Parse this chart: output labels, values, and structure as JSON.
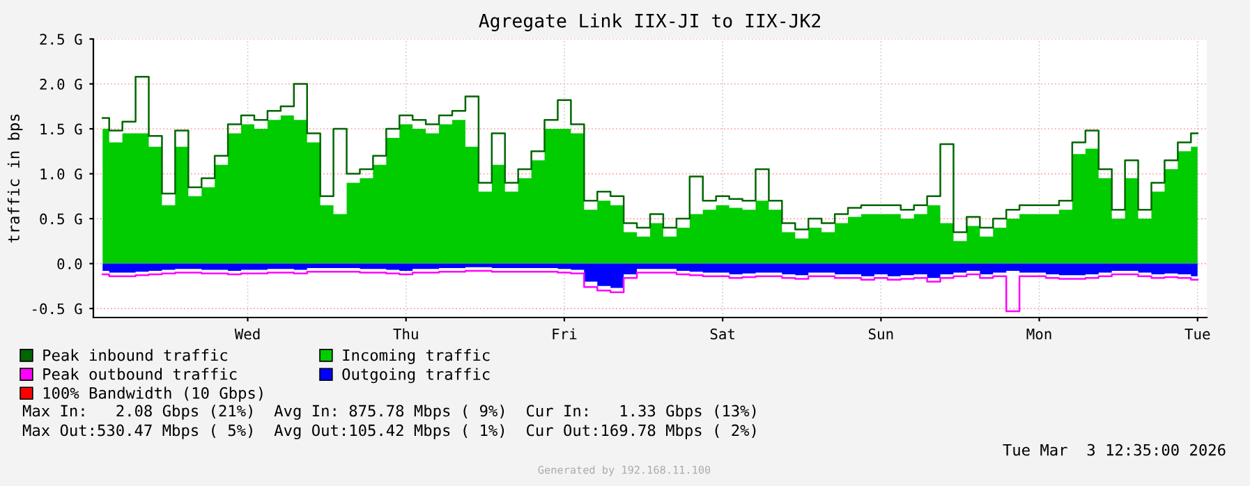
{
  "chart_data": {
    "type": "area",
    "title": "Agregate Link IIX-JI to IIX-JK2",
    "ylabel": "traffic in bps",
    "categories": [
      null,
      null,
      null,
      null,
      null,
      null,
      null,
      null,
      null,
      null,
      null,
      "Wed",
      null,
      null,
      null,
      null,
      null,
      null,
      null,
      null,
      null,
      null,
      null,
      "Thu",
      null,
      null,
      null,
      null,
      null,
      null,
      null,
      null,
      null,
      null,
      null,
      "Fri",
      null,
      null,
      null,
      null,
      null,
      null,
      null,
      null,
      null,
      null,
      null,
      "Sat",
      null,
      null,
      null,
      null,
      null,
      null,
      null,
      null,
      null,
      null,
      null,
      "Sun",
      null,
      null,
      null,
      null,
      null,
      null,
      null,
      null,
      null,
      null,
      null,
      "Mon",
      null,
      null,
      null,
      null,
      null,
      null,
      null,
      null,
      null,
      null,
      null,
      "Tue"
    ],
    "ylim": [
      -0.6,
      2.5
    ],
    "yticks": [
      {
        "value": -0.5,
        "label": "-0.5 G"
      },
      {
        "value": 0,
        "label": "0.0"
      },
      {
        "value": 0.5,
        "label": "0.5 G"
      },
      {
        "value": 1.0,
        "label": "1.0 G"
      },
      {
        "value": 1.5,
        "label": "1.5 G"
      },
      {
        "value": 2.0,
        "label": "2.0 G"
      },
      {
        "value": 2.5,
        "label": "2.5 G"
      }
    ],
    "grid": true,
    "legend": "bottom",
    "series": [
      {
        "name": "Peak inbound traffic",
        "type": "step",
        "color": "#006600",
        "values": [
          1.62,
          1.48,
          1.58,
          2.08,
          1.42,
          0.78,
          1.48,
          0.85,
          0.95,
          1.2,
          1.55,
          1.65,
          1.6,
          1.7,
          1.75,
          2.0,
          1.45,
          0.75,
          1.5,
          1.0,
          1.05,
          1.2,
          1.5,
          1.65,
          1.6,
          1.55,
          1.65,
          1.7,
          1.86,
          0.9,
          1.45,
          0.9,
          1.05,
          1.25,
          1.6,
          1.82,
          1.55,
          0.7,
          0.8,
          0.75,
          0.45,
          0.4,
          0.55,
          0.4,
          0.5,
          0.97,
          0.7,
          0.75,
          0.72,
          0.7,
          1.05,
          0.7,
          0.45,
          0.38,
          0.5,
          0.45,
          0.55,
          0.62,
          0.65,
          0.65,
          0.65,
          0.6,
          0.65,
          0.75,
          1.33,
          0.35,
          0.52,
          0.4,
          0.5,
          0.6,
          0.65,
          0.65,
          0.65,
          0.7,
          1.35,
          1.48,
          1.05,
          0.6,
          1.15,
          0.6,
          0.9,
          1.15,
          1.35,
          1.45
        ]
      },
      {
        "name": "Peak outbound traffic",
        "type": "step",
        "color": "#ff00ff",
        "values": [
          -0.12,
          -0.14,
          -0.14,
          -0.13,
          -0.12,
          -0.11,
          -0.1,
          -0.1,
          -0.11,
          -0.11,
          -0.12,
          -0.11,
          -0.11,
          -0.1,
          -0.1,
          -0.11,
          -0.09,
          -0.09,
          -0.09,
          -0.09,
          -0.1,
          -0.1,
          -0.11,
          -0.12,
          -0.1,
          -0.1,
          -0.09,
          -0.09,
          -0.08,
          -0.08,
          -0.09,
          -0.09,
          -0.09,
          -0.09,
          -0.09,
          -0.1,
          -0.11,
          -0.26,
          -0.3,
          -0.32,
          -0.16,
          -0.1,
          -0.1,
          -0.1,
          -0.12,
          -0.13,
          -0.14,
          -0.14,
          -0.16,
          -0.15,
          -0.14,
          -0.14,
          -0.16,
          -0.17,
          -0.14,
          -0.14,
          -0.16,
          -0.16,
          -0.18,
          -0.16,
          -0.18,
          -0.17,
          -0.16,
          -0.2,
          -0.16,
          -0.14,
          -0.12,
          -0.16,
          -0.14,
          -0.53,
          -0.14,
          -0.14,
          -0.16,
          -0.17,
          -0.17,
          -0.16,
          -0.14,
          -0.12,
          -0.12,
          -0.14,
          -0.16,
          -0.15,
          -0.16,
          -0.18
        ]
      },
      {
        "name": "100% Bandwidth (10 Gbps)",
        "type": "line",
        "color": "#ff0000",
        "values": [
          null,
          null,
          null,
          null,
          null,
          null,
          null,
          null,
          null,
          null,
          null,
          null,
          null,
          null,
          null,
          null,
          null,
          null,
          null,
          null,
          null,
          null,
          null,
          null,
          null,
          null,
          null,
          null,
          null,
          null,
          null,
          null,
          null,
          null,
          null,
          null,
          null,
          null,
          null,
          null,
          null,
          null,
          null,
          null,
          null,
          null,
          null,
          null,
          null,
          null,
          null,
          null,
          null,
          null,
          null,
          null,
          null,
          null,
          null,
          null,
          null,
          null,
          null,
          null,
          null,
          null,
          null,
          null,
          null,
          null,
          null,
          null,
          null,
          null,
          null,
          null,
          null,
          null,
          null,
          null,
          null,
          null,
          null,
          null
        ]
      },
      {
        "name": "Incoming traffic",
        "color": "#00cc00",
        "values": [
          1.5,
          1.35,
          1.45,
          1.45,
          1.3,
          0.65,
          1.3,
          0.75,
          0.85,
          1.1,
          1.45,
          1.55,
          1.5,
          1.6,
          1.65,
          1.6,
          1.35,
          0.65,
          0.55,
          0.9,
          0.95,
          1.1,
          1.4,
          1.55,
          1.5,
          1.45,
          1.55,
          1.6,
          1.3,
          0.8,
          1.1,
          0.8,
          0.95,
          1.15,
          1.5,
          1.5,
          1.45,
          0.6,
          0.7,
          0.65,
          0.35,
          0.3,
          0.45,
          0.3,
          0.4,
          0.55,
          0.6,
          0.65,
          0.62,
          0.6,
          0.7,
          0.6,
          0.35,
          0.28,
          0.4,
          0.35,
          0.45,
          0.52,
          0.55,
          0.55,
          0.55,
          0.5,
          0.55,
          0.65,
          0.45,
          0.25,
          0.42,
          0.3,
          0.4,
          0.5,
          0.55,
          0.55,
          0.55,
          0.6,
          1.22,
          1.28,
          0.95,
          0.5,
          0.95,
          0.5,
          0.8,
          1.05,
          1.25,
          1.3
        ]
      },
      {
        "name": "Outgoing traffic",
        "color": "#0000ff",
        "values": [
          -0.08,
          -0.1,
          -0.1,
          -0.09,
          -0.08,
          -0.07,
          -0.06,
          -0.06,
          -0.07,
          -0.07,
          -0.08,
          -0.07,
          -0.07,
          -0.06,
          -0.06,
          -0.07,
          -0.05,
          -0.05,
          -0.05,
          -0.05,
          -0.06,
          -0.06,
          -0.07,
          -0.08,
          -0.06,
          -0.06,
          -0.05,
          -0.05,
          -0.04,
          -0.04,
          -0.05,
          -0.05,
          -0.05,
          -0.05,
          -0.05,
          -0.06,
          -0.07,
          -0.2,
          -0.25,
          -0.27,
          -0.12,
          -0.06,
          -0.06,
          -0.06,
          -0.08,
          -0.09,
          -0.1,
          -0.1,
          -0.12,
          -0.11,
          -0.1,
          -0.1,
          -0.12,
          -0.13,
          -0.1,
          -0.1,
          -0.12,
          -0.12,
          -0.14,
          -0.12,
          -0.14,
          -0.13,
          -0.12,
          -0.16,
          -0.12,
          -0.1,
          -0.08,
          -0.12,
          -0.1,
          -0.08,
          -0.1,
          -0.1,
          -0.12,
          -0.13,
          -0.13,
          -0.12,
          -0.1,
          -0.08,
          -0.08,
          -0.1,
          -0.12,
          -0.11,
          -0.12,
          -0.14
        ]
      }
    ],
    "annotations": [
      "Max In:   2.08 Gbps (21%)  Avg In: 875.78 Mbps ( 9%)  Cur In:   1.33 Gbps (13%)",
      "Max Out:530.47 Mbps ( 5%)  Avg Out:105.42 Mbps ( 1%)  Cur Out:169.78 Mbps ( 2%)",
      "Tue Mar  3 12:35:00 2026",
      "Generated by 192.168.11.100"
    ]
  }
}
